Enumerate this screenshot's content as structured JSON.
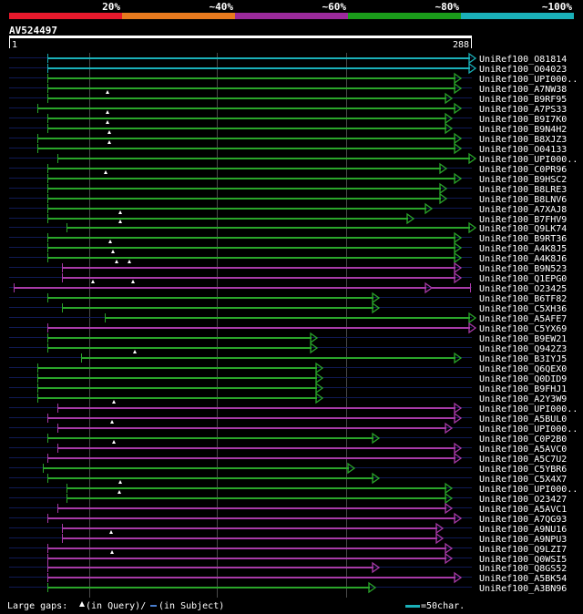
{
  "legend": {
    "labels": [
      "20%",
      "~40%",
      "~60%",
      "~80%",
      "~100%"
    ],
    "colors": [
      "#e8192c",
      "#e87a1e",
      "#9b2a9b",
      "#1a9c1a",
      "#1ab0b8"
    ]
  },
  "query": {
    "id": "AV524497",
    "start": "1",
    "end": "288"
  },
  "colors": {
    "cyan": "#1ab0b8",
    "green": "#2aa52a",
    "magenta": "#a83aa8",
    "navy": "#101a55",
    "gridline": "#4a4a4a",
    "background": "#000000"
  },
  "hits": [
    {
      "label": "UniRef100_O81814",
      "color": "cyan",
      "start": 52,
      "end": 516,
      "tri": []
    },
    {
      "label": "UniRef100_O04023",
      "color": "cyan",
      "start": 52,
      "end": 516,
      "tri": []
    },
    {
      "label": "UniRef100_UPI000..",
      "color": "green",
      "start": 52,
      "end": 500,
      "tri": []
    },
    {
      "label": "UniRef100_A7NW38",
      "color": "green",
      "start": 52,
      "end": 500,
      "tri": []
    },
    {
      "label": "UniRef100_B9RF95",
      "color": "green",
      "start": 52,
      "end": 490,
      "tri": [
        118
      ]
    },
    {
      "label": "UniRef100_A7PS33",
      "color": "green",
      "start": 41,
      "end": 500,
      "tri": []
    },
    {
      "label": "UniRef100_B9I7K0",
      "color": "green",
      "start": 52,
      "end": 490,
      "tri": [
        118
      ]
    },
    {
      "label": "UniRef100_B9N4H2",
      "color": "green",
      "start": 52,
      "end": 490,
      "tri": [
        118
      ]
    },
    {
      "label": "UniRef100_B8XJZ3",
      "color": "green",
      "start": 41,
      "end": 500,
      "tri": [
        120
      ]
    },
    {
      "label": "UniRef100_O04133",
      "color": "green",
      "start": 41,
      "end": 500,
      "tri": [
        120
      ]
    },
    {
      "label": "UniRef100_UPI000..",
      "color": "green",
      "start": 63,
      "end": 516,
      "tri": []
    },
    {
      "label": "UniRef100_C0PR96",
      "color": "green",
      "start": 52,
      "end": 484,
      "tri": []
    },
    {
      "label": "UniRef100_B9HSC2",
      "color": "green",
      "start": 52,
      "end": 500,
      "tri": [
        116
      ]
    },
    {
      "label": "UniRef100_B8LRE3",
      "color": "green",
      "start": 52,
      "end": 484,
      "tri": []
    },
    {
      "label": "UniRef100_B8LNV6",
      "color": "green",
      "start": 52,
      "end": 484,
      "tri": []
    },
    {
      "label": "UniRef100_A7XAJ8",
      "color": "green",
      "start": 52,
      "end": 468,
      "tri": []
    },
    {
      "label": "UniRef100_B7FHV9",
      "color": "green",
      "start": 52,
      "end": 448,
      "tri": [
        132
      ]
    },
    {
      "label": "UniRef100_Q9LK74",
      "color": "green",
      "start": 73,
      "end": 516,
      "tri": [
        132
      ]
    },
    {
      "label": "UniRef100_B9RT36",
      "color": "green",
      "start": 52,
      "end": 500,
      "tri": []
    },
    {
      "label": "UniRef100_A4K8J5",
      "color": "green",
      "start": 52,
      "end": 500,
      "tri": [
        121
      ]
    },
    {
      "label": "UniRef100_A4K8J6",
      "color": "green",
      "start": 52,
      "end": 500,
      "tri": [
        124
      ]
    },
    {
      "label": "UniRef100_B9N523",
      "color": "magenta",
      "start": 68,
      "end": 500,
      "tri": [
        128,
        142
      ]
    },
    {
      "label": "UniRef100_Q1EPG0",
      "color": "magenta",
      "start": 68,
      "end": 500,
      "tri": []
    },
    {
      "label": "UniRef100_O23425",
      "color": "magenta",
      "start": 15,
      "end": 516,
      "tri": [
        102,
        146
      ],
      "tail": 468
    },
    {
      "label": "UniRef100_B6TF82",
      "color": "green",
      "start": 52,
      "end": 410,
      "tri": []
    },
    {
      "label": "UniRef100_C5XH36",
      "color": "green",
      "start": 68,
      "end": 410,
      "tri": []
    },
    {
      "label": "UniRef100_A5AFE7",
      "color": "green",
      "start": 115,
      "end": 516,
      "tri": []
    },
    {
      "label": "UniRef100_C5YX69",
      "color": "magenta",
      "start": 52,
      "end": 516,
      "tri": []
    },
    {
      "label": "UniRef100_B9EW21",
      "color": "green",
      "start": 52,
      "end": 342,
      "tri": []
    },
    {
      "label": "UniRef100_Q942Z3",
      "color": "green",
      "start": 52,
      "end": 342,
      "tri": []
    },
    {
      "label": "UniRef100_B3IYJ5",
      "color": "green",
      "start": 89,
      "end": 500,
      "tri": [
        148
      ]
    },
    {
      "label": "UniRef100_Q6QEX0",
      "color": "green",
      "start": 41,
      "end": 348,
      "tri": []
    },
    {
      "label": "UniRef100_Q0DID9",
      "color": "green",
      "start": 41,
      "end": 348,
      "tri": []
    },
    {
      "label": "UniRef100_B9FHJ1",
      "color": "green",
      "start": 41,
      "end": 348,
      "tri": []
    },
    {
      "label": "UniRef100_A2Y3W9",
      "color": "green",
      "start": 41,
      "end": 348,
      "tri": []
    },
    {
      "label": "UniRef100_UPI000..",
      "color": "magenta",
      "start": 63,
      "end": 500,
      "tri": [
        125
      ]
    },
    {
      "label": "UniRef100_A5BUL0",
      "color": "magenta",
      "start": 52,
      "end": 500,
      "tri": []
    },
    {
      "label": "UniRef100_UPI000..",
      "color": "magenta",
      "start": 63,
      "end": 490,
      "tri": [
        123
      ]
    },
    {
      "label": "UniRef100_C0P2B0",
      "color": "green",
      "start": 52,
      "end": 410,
      "tri": []
    },
    {
      "label": "UniRef100_A5AVC0",
      "color": "magenta",
      "start": 63,
      "end": 500,
      "tri": [
        125
      ]
    },
    {
      "label": "UniRef100_A5C7U2",
      "color": "magenta",
      "start": 52,
      "end": 500,
      "tri": []
    },
    {
      "label": "UniRef100_C5YBR6",
      "color": "green",
      "start": 47,
      "end": 383,
      "tri": []
    },
    {
      "label": "UniRef100_C5X4X7",
      "color": "green",
      "start": 52,
      "end": 410,
      "tri": []
    },
    {
      "label": "UniRef100_UPI000..",
      "color": "green",
      "start": 73,
      "end": 490,
      "tri": [
        132
      ]
    },
    {
      "label": "UniRef100_O23427",
      "color": "green",
      "start": 73,
      "end": 490,
      "tri": [
        131
      ]
    },
    {
      "label": "UniRef100_A5AVC1",
      "color": "magenta",
      "start": 63,
      "end": 490,
      "tri": []
    },
    {
      "label": "UniRef100_A7QG93",
      "color": "magenta",
      "start": 52,
      "end": 500,
      "tri": []
    },
    {
      "label": "UniRef100_A9NU16",
      "color": "magenta",
      "start": 68,
      "end": 480,
      "tri": []
    },
    {
      "label": "UniRef100_A9NPU3",
      "color": "magenta",
      "start": 68,
      "end": 480,
      "tri": [
        122
      ]
    },
    {
      "label": "UniRef100_Q9LZI7",
      "color": "magenta",
      "start": 52,
      "end": 490,
      "tri": []
    },
    {
      "label": "UniRef100_Q0WSI5",
      "color": "magenta",
      "start": 52,
      "end": 490,
      "tri": [
        123
      ]
    },
    {
      "label": "UniRef100_Q8GS52",
      "color": "magenta",
      "start": 52,
      "end": 410,
      "tri": []
    },
    {
      "label": "UniRef100_A5BK54",
      "color": "magenta",
      "start": 52,
      "end": 500,
      "tri": []
    },
    {
      "label": "UniRef100_A3BN96",
      "color": "green",
      "start": 52,
      "end": 406,
      "tri": []
    }
  ],
  "footer": {
    "gaps_text": "Large gaps: ",
    "query_gap": "(in Query)/",
    "subject_gap": "(in Subject)",
    "scale_text": "=50char."
  }
}
